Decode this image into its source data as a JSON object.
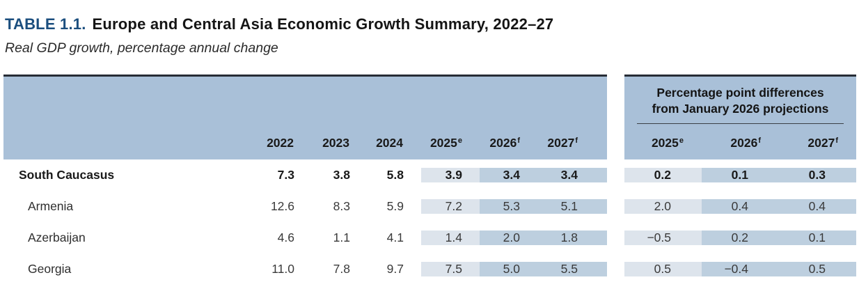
{
  "title": {
    "label": "TABLE 1.1.",
    "text": "Europe and Central Asia Economic Growth Summary, 2022–27"
  },
  "subtitle": "Real GDP growth, percentage annual change",
  "growth_table": {
    "columns": [
      {
        "year": "2022",
        "sup": ""
      },
      {
        "year": "2023",
        "sup": ""
      },
      {
        "year": "2024",
        "sup": ""
      },
      {
        "year": "2025",
        "sup": "e"
      },
      {
        "year": "2026",
        "sup": "f"
      },
      {
        "year": "2027",
        "sup": "f"
      }
    ]
  },
  "diff_table": {
    "header_line1": "Percentage point differences",
    "header_line2": "from January 2026 projections",
    "columns": [
      {
        "year": "2025",
        "sup": "e"
      },
      {
        "year": "2026",
        "sup": "f"
      },
      {
        "year": "2027",
        "sup": "f"
      }
    ]
  },
  "rows": [
    {
      "label": "South Caucasus",
      "values": [
        "7.3",
        "3.8",
        "5.8",
        "3.9",
        "3.4",
        "3.4"
      ],
      "diffs": [
        "0.2",
        "0.1",
        "0.3"
      ]
    },
    {
      "label": "Armenia",
      "values": [
        "12.6",
        "8.3",
        "5.9",
        "7.2",
        "5.3",
        "5.1"
      ],
      "diffs": [
        "2.0",
        "0.4",
        "0.4"
      ]
    },
    {
      "label": "Azerbaijan",
      "values": [
        "4.6",
        "1.1",
        "4.1",
        "1.4",
        "2.0",
        "1.8"
      ],
      "diffs": [
        "−0.5",
        "0.2",
        "0.1"
      ]
    },
    {
      "label": "Georgia",
      "values": [
        "11.0",
        "7.8",
        "9.7",
        "7.5",
        "5.0",
        "5.5"
      ],
      "diffs": [
        "0.5",
        "−0.4",
        "0.5"
      ]
    }
  ],
  "colors": {
    "accent_navy": "#1b4e7e",
    "header_band_blue": "#a9c0d8",
    "column_shade_light": "#dde4ec",
    "column_shade_dark": "#bdcfdf",
    "top_border": "#262c35"
  },
  "chart_data": {
    "type": "table",
    "title": "TABLE 1.1. Europe and Central Asia Economic Growth Summary, 2022–27",
    "subtitle": "Real GDP growth, percentage annual change",
    "columns": [
      "2022",
      "2023",
      "2024",
      "2025e",
      "2026f",
      "2027f",
      "2025e (diff from Jan 2026 proj.)",
      "2026f (diff from Jan 2026 proj.)",
      "2027f (diff from Jan 2026 proj.)"
    ],
    "rows": [
      [
        "South Caucasus",
        7.3,
        3.8,
        5.8,
        3.9,
        3.4,
        3.4,
        0.2,
        0.1,
        0.3
      ],
      [
        "Armenia",
        12.6,
        8.3,
        5.9,
        7.2,
        5.3,
        5.1,
        2.0,
        0.4,
        0.4
      ],
      [
        "Azerbaijan",
        4.6,
        1.1,
        4.1,
        1.4,
        2.0,
        1.8,
        -0.5,
        0.2,
        0.1
      ],
      [
        "Georgia",
        11.0,
        7.8,
        9.7,
        7.5,
        5.0,
        5.5,
        0.5,
        -0.4,
        0.5
      ]
    ]
  }
}
